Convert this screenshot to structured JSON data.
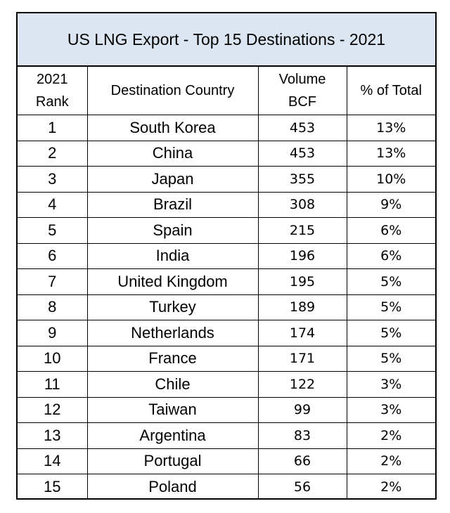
{
  "title": "US LNG Export - Top 15 Destinations - 2021",
  "headers": {
    "rank_line1": "2021",
    "rank_line2": "Rank",
    "country": "Destination Country",
    "volume_line1": "Volume",
    "volume_line2": "BCF",
    "percent": "% of Total"
  },
  "rows": [
    {
      "rank": "1",
      "country": "South Korea",
      "volume": "453",
      "percent": "13%"
    },
    {
      "rank": "2",
      "country": "China",
      "volume": "453",
      "percent": "13%"
    },
    {
      "rank": "3",
      "country": "Japan",
      "volume": "355",
      "percent": "10%"
    },
    {
      "rank": "4",
      "country": "Brazil",
      "volume": "308",
      "percent": "9%"
    },
    {
      "rank": "5",
      "country": "Spain",
      "volume": "215",
      "percent": "6%"
    },
    {
      "rank": "6",
      "country": "India",
      "volume": "196",
      "percent": "6%"
    },
    {
      "rank": "7",
      "country": "United Kingdom",
      "volume": "195",
      "percent": "5%"
    },
    {
      "rank": "8",
      "country": "Turkey",
      "volume": "189",
      "percent": "5%"
    },
    {
      "rank": "9",
      "country": "Netherlands",
      "volume": "174",
      "percent": "5%"
    },
    {
      "rank": "10",
      "country": "France",
      "volume": "171",
      "percent": "5%"
    },
    {
      "rank": "11",
      "country": "Chile",
      "volume": "122",
      "percent": "3%"
    },
    {
      "rank": "12",
      "country": "Taiwan",
      "volume": "99",
      "percent": "3%"
    },
    {
      "rank": "13",
      "country": "Argentina",
      "volume": "83",
      "percent": "2%"
    },
    {
      "rank": "14",
      "country": "Portugal",
      "volume": "66",
      "percent": "2%"
    },
    {
      "rank": "15",
      "country": "Poland",
      "volume": "56",
      "percent": "2%"
    }
  ],
  "colors": {
    "title_background": "#dce6f2",
    "border": "#000000"
  }
}
